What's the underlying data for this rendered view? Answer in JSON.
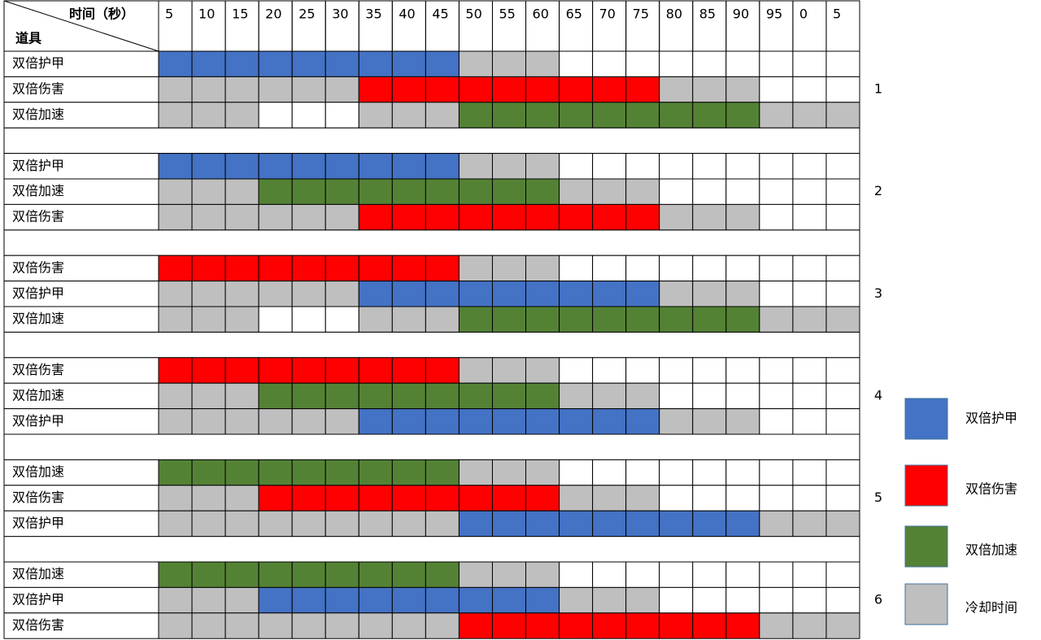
{
  "header": {
    "time_label": "时间（秒）",
    "item_label": "道具",
    "columns": [
      5,
      10,
      15,
      20,
      25,
      30,
      35,
      40,
      45,
      50,
      55,
      60,
      65,
      70,
      75,
      80,
      85,
      90,
      95,
      0,
      5
    ]
  },
  "groups": [
    {
      "label": "1",
      "rows": [
        {
          "item": "双倍护甲",
          "cells": [
            0,
            0,
            0,
            0,
            0,
            0,
            0,
            0,
            0,
            3,
            3,
            3,
            null,
            null,
            null,
            null,
            null,
            null,
            null,
            null,
            null
          ]
        },
        {
          "item": "双倍伤害",
          "cells": [
            3,
            3,
            3,
            3,
            3,
            3,
            1,
            1,
            1,
            1,
            1,
            1,
            1,
            1,
            1,
            3,
            3,
            3,
            null,
            null,
            null
          ]
        },
        {
          "item": "双倍加速",
          "cells": [
            3,
            3,
            3,
            null,
            null,
            null,
            3,
            3,
            3,
            2,
            2,
            2,
            2,
            2,
            2,
            2,
            2,
            2,
            3,
            3,
            3
          ]
        }
      ]
    },
    {
      "label": "2",
      "rows": [
        {
          "item": "双倍护甲",
          "cells": [
            0,
            0,
            0,
            0,
            0,
            0,
            0,
            0,
            0,
            3,
            3,
            3,
            null,
            null,
            null,
            null,
            null,
            null,
            null,
            null,
            null
          ]
        },
        {
          "item": "双倍加速",
          "cells": [
            3,
            3,
            3,
            2,
            2,
            2,
            2,
            2,
            2,
            2,
            2,
            2,
            3,
            3,
            3,
            null,
            null,
            null,
            null,
            null,
            null
          ]
        },
        {
          "item": "双倍伤害",
          "cells": [
            3,
            3,
            3,
            3,
            3,
            3,
            1,
            1,
            1,
            1,
            1,
            1,
            1,
            1,
            1,
            3,
            3,
            3,
            null,
            null,
            null
          ]
        }
      ]
    },
    {
      "label": "3",
      "rows": [
        {
          "item": "双倍伤害",
          "cells": [
            1,
            1,
            1,
            1,
            1,
            1,
            1,
            1,
            1,
            3,
            3,
            3,
            null,
            null,
            null,
            null,
            null,
            null,
            null,
            null,
            null
          ]
        },
        {
          "item": "双倍护甲",
          "cells": [
            3,
            3,
            3,
            3,
            3,
            3,
            0,
            0,
            0,
            0,
            0,
            0,
            0,
            0,
            0,
            3,
            3,
            3,
            null,
            null,
            null
          ]
        },
        {
          "item": "双倍加速",
          "cells": [
            3,
            3,
            3,
            null,
            null,
            null,
            3,
            3,
            3,
            2,
            2,
            2,
            2,
            2,
            2,
            2,
            2,
            2,
            3,
            3,
            3
          ]
        }
      ]
    },
    {
      "label": "4",
      "rows": [
        {
          "item": "双倍伤害",
          "cells": [
            1,
            1,
            1,
            1,
            1,
            1,
            1,
            1,
            1,
            3,
            3,
            3,
            null,
            null,
            null,
            null,
            null,
            null,
            null,
            null,
            null
          ]
        },
        {
          "item": "双倍加速",
          "cells": [
            3,
            3,
            3,
            2,
            2,
            2,
            2,
            2,
            2,
            2,
            2,
            2,
            3,
            3,
            3,
            null,
            null,
            null,
            null,
            null,
            null
          ]
        },
        {
          "item": "双倍护甲",
          "cells": [
            3,
            3,
            3,
            3,
            3,
            3,
            0,
            0,
            0,
            0,
            0,
            0,
            0,
            0,
            0,
            3,
            3,
            3,
            null,
            null,
            null
          ]
        }
      ]
    },
    {
      "label": "5",
      "rows": [
        {
          "item": "双倍加速",
          "cells": [
            2,
            2,
            2,
            2,
            2,
            2,
            2,
            2,
            2,
            3,
            3,
            3,
            null,
            null,
            null,
            null,
            null,
            null,
            null,
            null,
            null
          ]
        },
        {
          "item": "双倍伤害",
          "cells": [
            3,
            3,
            3,
            1,
            1,
            1,
            1,
            1,
            1,
            1,
            1,
            1,
            3,
            3,
            3,
            null,
            null,
            null,
            null,
            null,
            null
          ]
        },
        {
          "item": "双倍护甲",
          "cells": [
            3,
            3,
            3,
            3,
            3,
            3,
            3,
            3,
            3,
            0,
            0,
            0,
            0,
            0,
            0,
            0,
            0,
            0,
            3,
            3,
            3
          ]
        }
      ]
    },
    {
      "label": "6",
      "rows": [
        {
          "item": "双倍加速",
          "cells": [
            2,
            2,
            2,
            2,
            2,
            2,
            2,
            2,
            2,
            3,
            3,
            3,
            null,
            null,
            null,
            null,
            null,
            null,
            null,
            null,
            null
          ]
        },
        {
          "item": "双倍护甲",
          "cells": [
            3,
            3,
            3,
            0,
            0,
            0,
            0,
            0,
            0,
            0,
            0,
            0,
            3,
            3,
            3,
            null,
            null,
            null,
            null,
            null,
            null
          ]
        },
        {
          "item": "双倍伤害",
          "cells": [
            3,
            3,
            3,
            3,
            3,
            3,
            3,
            3,
            3,
            1,
            1,
            1,
            1,
            1,
            1,
            1,
            1,
            1,
            3,
            3,
            3
          ]
        }
      ]
    }
  ],
  "legend": [
    {
      "label": "双倍护甲",
      "color": "#4472c4"
    },
    {
      "label": "双倍伤害",
      "color": "#ff0000"
    },
    {
      "label": "双倍加速",
      "color": "#548235"
    },
    {
      "label": "冷却时间",
      "color": "#bfbfbf"
    }
  ]
}
